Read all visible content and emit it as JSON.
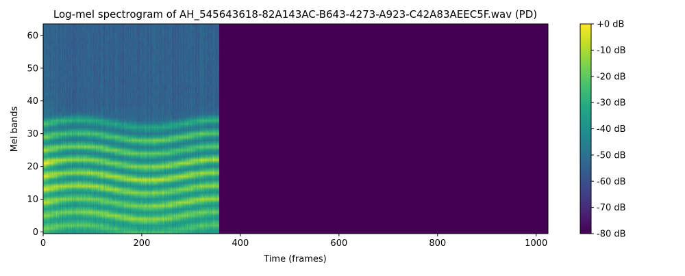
{
  "chart_data": {
    "type": "heatmap",
    "title": "Log-mel spectrogram of AH_545643618-82A143AC-B643-4273-A923-C42A83AEEC5F.wav (PD)",
    "xlabel": "Time (frames)",
    "ylabel": "Mel bands",
    "xlim": [
      0,
      1024
    ],
    "ylim": [
      -0.5,
      63.5
    ],
    "x_ticks": [
      0,
      200,
      400,
      600,
      800,
      1000
    ],
    "x_tick_labels": [
      "0",
      "200",
      "400",
      "600",
      "800",
      "1000"
    ],
    "y_ticks": [
      0,
      10,
      20,
      30,
      40,
      50,
      60
    ],
    "y_tick_labels": [
      "0",
      "10",
      "20",
      "30",
      "40",
      "50",
      "60"
    ],
    "n_frames": 1024,
    "n_mels": 64,
    "signal_end_frame": 357,
    "onset_end_frame": 40,
    "silence_level_db": -80,
    "colormap": "viridis",
    "colorbar": {
      "vmin": -80,
      "vmax": 0,
      "ticks": [
        0,
        -10,
        -20,
        -30,
        -40,
        -50,
        -60,
        -70,
        -80
      ],
      "tick_labels": [
        "+0 dB",
        "-10 dB",
        "-20 dB",
        "-30 dB",
        "-40 dB",
        "-50 dB",
        "-60 dB",
        "-70 dB",
        "-80 dB"
      ]
    },
    "harmonic_bands": [
      {
        "mel_band": 1,
        "db": -22
      },
      {
        "mel_band": 5,
        "db": -15
      },
      {
        "mel_band": 9,
        "db": -14
      },
      {
        "mel_band": 13,
        "db": -12
      },
      {
        "mel_band": 17,
        "db": -10
      },
      {
        "mel_band": 21,
        "db": -12
      },
      {
        "mel_band": 25,
        "db": -18
      },
      {
        "mel_band": 29,
        "db": -20
      },
      {
        "mel_band": 33,
        "db": -30
      }
    ],
    "background_db_low_bands": -38,
    "background_db_high_bands": -55,
    "grid": false
  }
}
